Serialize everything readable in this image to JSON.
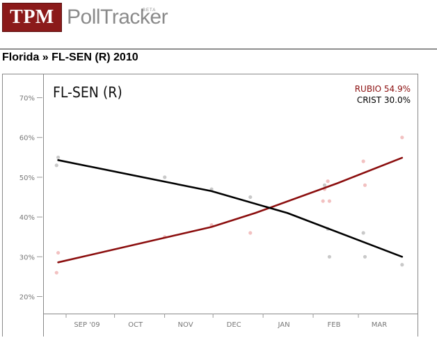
{
  "header": {
    "logo_text": "TPM",
    "product_name": "PollTracker",
    "beta_label": "BETA"
  },
  "breadcrumb": {
    "region": "Florida",
    "separator": "»",
    "race": "FL-SEN (R) 2010"
  },
  "chart_data": {
    "type": "line",
    "title": "FL-SEN (R)",
    "ylim": [
      15,
      75
    ],
    "yticks": [
      "20%",
      "30%",
      "40%",
      "50%",
      "60%",
      "70%"
    ],
    "ytick_values": [
      20,
      30,
      40,
      50,
      60,
      70
    ],
    "xticks": [
      "SEP '09",
      "OCT",
      "NOV",
      "DEC",
      "JAN",
      "FEB",
      "MAR"
    ],
    "xtick_dates": [
      "2009-09-01",
      "2009-10-01",
      "2009-11-01",
      "2009-12-01",
      "2010-01-01",
      "2010-02-01",
      "2010-03-01"
    ],
    "xlim": [
      "2009-08-01",
      "2010-03-20"
    ],
    "grid": false,
    "legend_position": "top-right",
    "series": [
      {
        "name": "RUBIO",
        "final_label": "54.9%",
        "color": "#8b0e0e",
        "dot_color": "#f2c1c1",
        "trend": [
          [
            "2009-08-12",
            28.6
          ],
          [
            "2009-11-15",
            37.5
          ],
          [
            "2009-12-12",
            41
          ],
          [
            "2010-02-01",
            48.5
          ],
          [
            "2010-03-13",
            54.9
          ]
        ],
        "polls": [
          [
            "2009-08-12",
            31
          ],
          [
            "2009-08-11",
            26
          ],
          [
            "2009-10-17",
            35
          ],
          [
            "2009-11-15",
            38
          ],
          [
            "2009-12-09",
            36
          ],
          [
            "2010-01-24",
            47
          ],
          [
            "2010-01-23",
            44
          ],
          [
            "2010-01-27",
            44
          ],
          [
            "2010-01-26",
            49
          ],
          [
            "2010-02-17",
            54
          ],
          [
            "2010-02-18",
            48
          ],
          [
            "2010-03-13",
            60
          ]
        ]
      },
      {
        "name": "CRIST",
        "final_label": "30.0%",
        "color": "#000000",
        "dot_color": "#c9c9c9",
        "trend": [
          [
            "2009-08-12",
            54.3
          ],
          [
            "2009-11-15",
            46.5
          ],
          [
            "2010-01-01",
            41
          ],
          [
            "2010-03-13",
            30
          ]
        ],
        "polls": [
          [
            "2009-08-12",
            55
          ],
          [
            "2009-08-11",
            53
          ],
          [
            "2009-10-17",
            50
          ],
          [
            "2009-11-15",
            47
          ],
          [
            "2009-12-09",
            45
          ],
          [
            "2010-01-24",
            48
          ],
          [
            "2010-01-26",
            37
          ],
          [
            "2010-01-27",
            30
          ],
          [
            "2010-02-17",
            36
          ],
          [
            "2010-02-18",
            30
          ],
          [
            "2010-03-13",
            28
          ]
        ]
      }
    ]
  }
}
